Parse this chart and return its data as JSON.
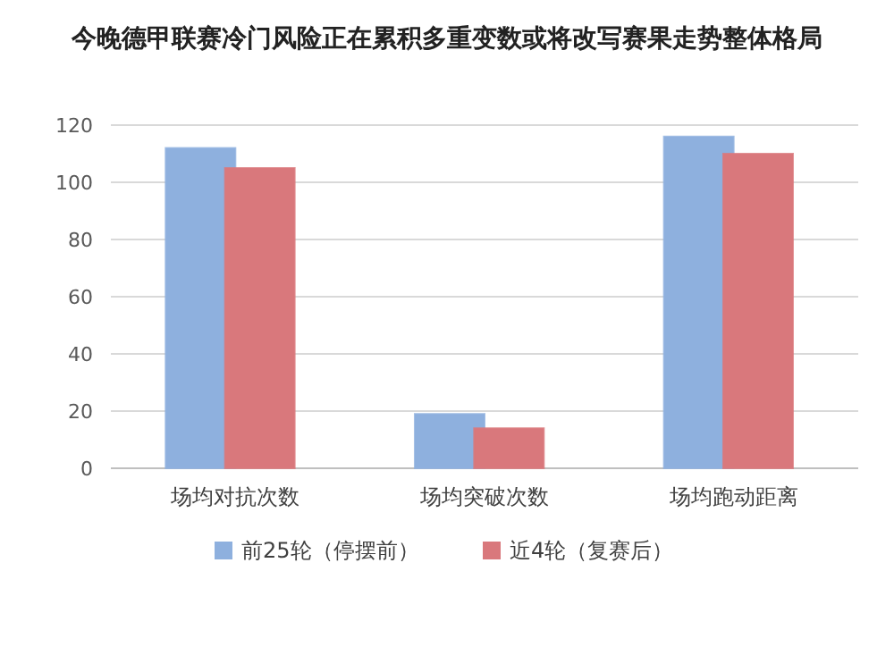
{
  "chart_data": {
    "type": "bar",
    "title": "今晚德甲联赛冷门风险正在累积多重变数或将改写赛果走势整体格局",
    "categories": [
      "场均对抗次数",
      "场均突破次数",
      "场均跑动距离"
    ],
    "series": [
      {
        "name": "前25轮（停摆前）",
        "color": "#8eb0de",
        "values": [
          112,
          19,
          116
        ]
      },
      {
        "name": "近4轮（复赛后）",
        "color": "#d9787c",
        "values": [
          105,
          14,
          110
        ]
      }
    ],
    "ylim": [
      0,
      120
    ],
    "yticks": [
      0,
      20,
      40,
      60,
      80,
      100,
      120
    ],
    "grid": "y",
    "legend": "bottom"
  }
}
